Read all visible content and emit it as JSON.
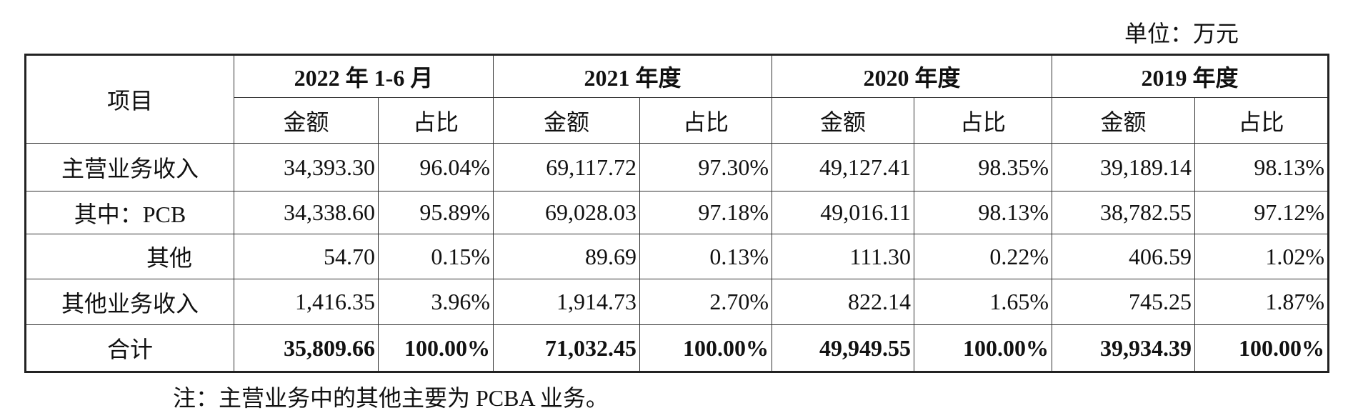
{
  "unit": "单位：万元",
  "table": {
    "item": "项目",
    "periods": [
      "2022 年 1-6 月",
      "2021 年度",
      "2020 年度",
      "2019 年度"
    ],
    "subheaders": [
      "金额",
      "占比",
      "金额",
      "占比",
      "金额",
      "占比",
      "金额",
      "占比"
    ],
    "rows": [
      {
        "label": "主营业务收入",
        "cells": [
          "34,393.30",
          "96.04%",
          "69,117.72",
          "97.30%",
          "49,127.41",
          "98.35%",
          "39,189.14",
          "98.13%"
        ]
      },
      {
        "label": "其中：PCB",
        "cells": [
          "34,338.60",
          "95.89%",
          "69,028.03",
          "97.18%",
          "49,016.11",
          "98.13%",
          "38,782.55",
          "97.12%"
        ]
      },
      {
        "label": "其他",
        "cells": [
          "54.70",
          "0.15%",
          "89.69",
          "0.13%",
          "111.30",
          "0.22%",
          "406.59",
          "1.02%"
        ]
      },
      {
        "label": "其他业务收入",
        "cells": [
          "1,416.35",
          "3.96%",
          "1,914.73",
          "2.70%",
          "822.14",
          "1.65%",
          "745.25",
          "1.87%"
        ]
      },
      {
        "label": "合计",
        "cells": [
          "35,809.66",
          "100.00%",
          "71,032.45",
          "100.00%",
          "49,949.55",
          "100.00%",
          "39,934.39",
          "100.00%"
        ]
      }
    ]
  },
  "note": "注：主营业务中的其他主要为 PCBA 业务。"
}
